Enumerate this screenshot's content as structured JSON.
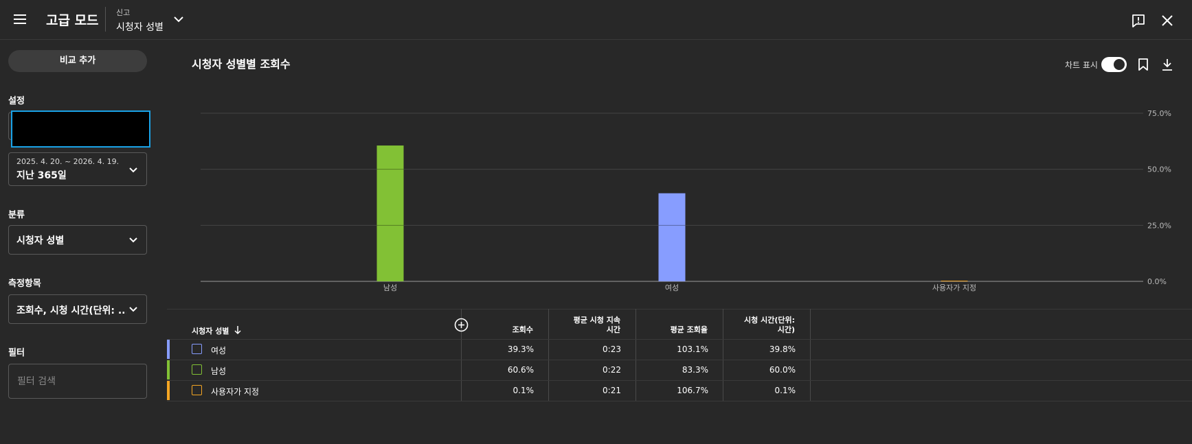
{
  "header": {
    "app_title": "고급 모드",
    "report_small": "신고",
    "report_main": "시청자 성별"
  },
  "sidebar": {
    "compare_button": "비교 추가",
    "settings_label": "설정",
    "date_range": "2025. 4. 20. ~ 2026. 4. 19.",
    "date_preset": "지난 365일",
    "classification_label": "분류",
    "classification_value": "시청자 성별",
    "metrics_label": "측정항목",
    "metrics_value": "조회수, 시청 시간(단위: ...",
    "filter_label": "필터",
    "filter_placeholder": "필터 검색"
  },
  "chart_header": {
    "title": "시청자 성별별 조회수",
    "toggle_label": "차트 표시",
    "toggle_on": true
  },
  "colors": {
    "male": "#82c135",
    "female": "#879dff",
    "custom": "#f5a623",
    "background": "#282828"
  },
  "chart_data": {
    "type": "bar",
    "categories": [
      "남성",
      "여성",
      "사용자가 지정"
    ],
    "values": [
      60.6,
      39.3,
      0.1
    ],
    "ylim": [
      0,
      75
    ],
    "yticks": [
      "0.0%",
      "25.0%",
      "50.0%",
      "75.0%"
    ],
    "ytick_values": [
      0,
      25,
      50,
      75
    ],
    "grid": true
  },
  "table": {
    "headers": [
      "시청자 성별",
      "조회수",
      "평균 시청 지속 시간",
      "평균 조회율",
      "시청 시간(단위: 시간)"
    ],
    "header_lines": [
      [
        "조회수"
      ],
      [
        "평균 시청 지속",
        "시간"
      ],
      [
        "평균 조회율"
      ],
      [
        "시청 시간(단위:",
        "시간)"
      ]
    ],
    "rows": [
      {
        "label": "여성",
        "views": "39.3%",
        "avg_duration": "0:23",
        "avg_rate": "103.1%",
        "watch_time": "39.8%"
      },
      {
        "label": "남성",
        "views": "60.6%",
        "avg_duration": "0:22",
        "avg_rate": "83.3%",
        "watch_time": "60.0%"
      },
      {
        "label": "사용자가 지정",
        "views": "0.1%",
        "avg_duration": "0:21",
        "avg_rate": "106.7%",
        "watch_time": "0.1%"
      }
    ]
  },
  "icons": {
    "menu": "menu-icon",
    "report_dropdown": "chevron-down-icon",
    "feedback": "feedback-icon",
    "close": "close-icon",
    "bookmark": "bookmark-icon",
    "download": "download-icon",
    "sort": "arrow-down-icon",
    "add_column": "plus-circle-icon"
  }
}
